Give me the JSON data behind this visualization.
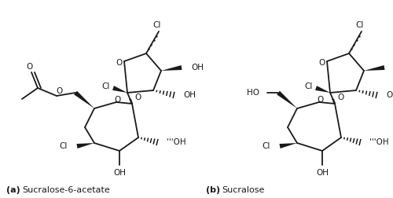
{
  "label_a_bold": "(a)",
  "label_a_rest": "  Sucralose-6-acetate",
  "label_b_bold": "(b)",
  "label_b_rest": "  Sucralose",
  "background": "#ffffff",
  "line_color": "#1a1a1a",
  "text_color": "#1a1a1a",
  "fig_width": 5.0,
  "fig_height": 2.52,
  "dpi": 100
}
